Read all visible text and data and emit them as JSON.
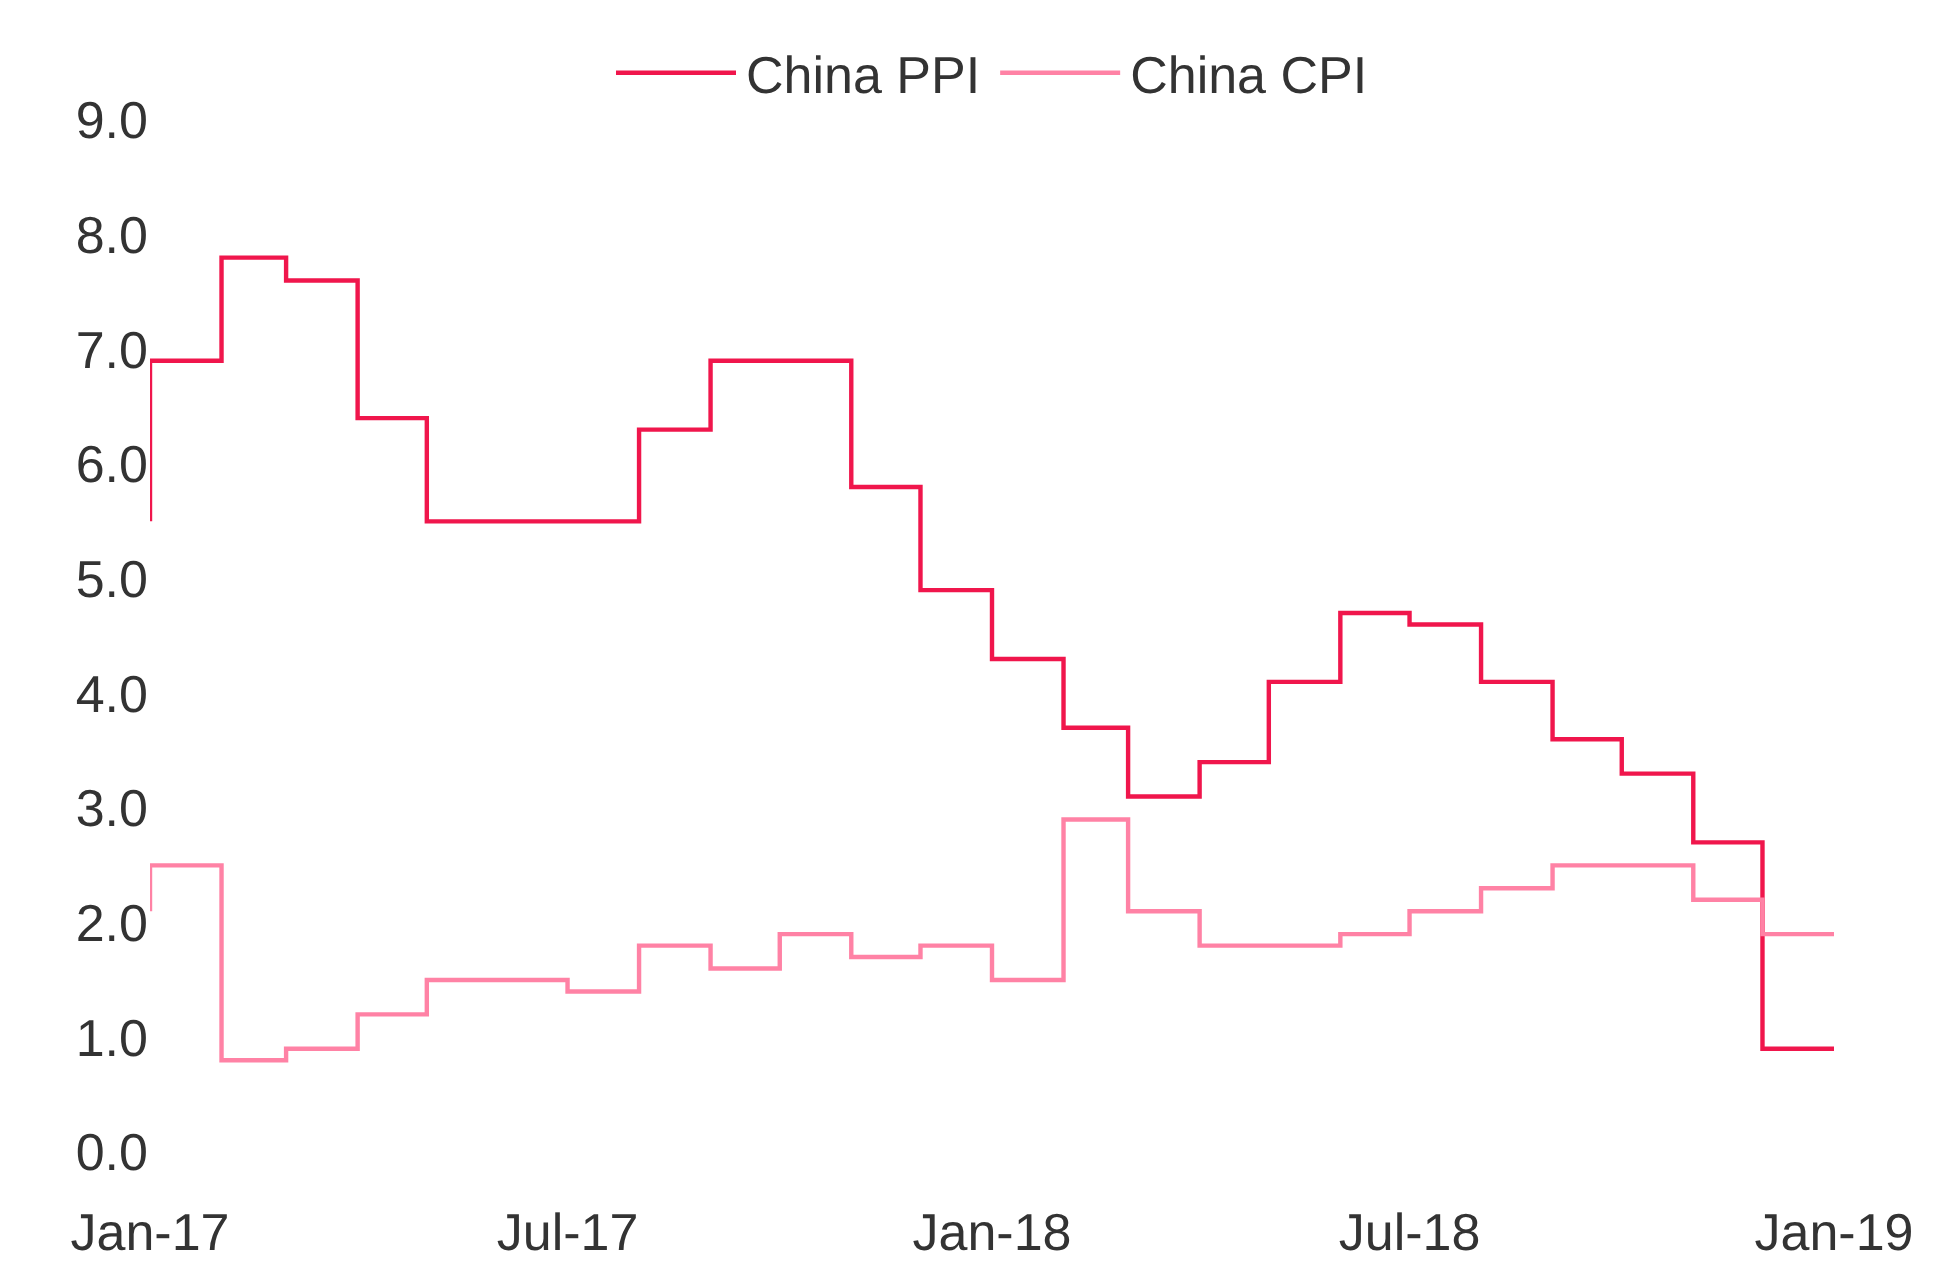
{
  "chart_data": {
    "type": "step",
    "x": [
      "2017-01",
      "2017-02",
      "2017-03",
      "2017-04",
      "2017-05",
      "2017-06",
      "2017-07",
      "2017-08",
      "2017-09",
      "2017-10",
      "2017-11",
      "2017-12",
      "2018-01",
      "2018-02",
      "2018-03",
      "2018-04",
      "2018-05",
      "2018-06",
      "2018-07",
      "2018-08",
      "2018-09",
      "2018-10",
      "2018-11",
      "2018-12",
      "2019-01"
    ],
    "series": [
      {
        "name": "China PPI",
        "color": "#f0164c",
        "values": [
          5.5,
          6.9,
          7.8,
          7.6,
          6.4,
          5.5,
          5.5,
          5.5,
          6.3,
          6.9,
          6.9,
          5.8,
          4.9,
          4.3,
          3.7,
          3.1,
          3.4,
          4.1,
          4.7,
          4.6,
          4.1,
          3.6,
          3.3,
          2.7,
          0.9
        ]
      },
      {
        "name": "China CPI",
        "color": "#ff82a5",
        "values": [
          2.1,
          2.5,
          0.8,
          0.9,
          1.2,
          1.5,
          1.5,
          1.4,
          1.8,
          1.6,
          1.9,
          1.7,
          1.8,
          1.5,
          2.9,
          2.1,
          1.8,
          1.8,
          1.9,
          2.1,
          2.3,
          2.5,
          2.5,
          2.2,
          1.9
        ]
      }
    ],
    "xlim": [
      "2017-01",
      "2019-01"
    ],
    "xticks": [
      {
        "value": "2017-01",
        "label": "Jan-17"
      },
      {
        "value": "2017-07",
        "label": "Jul-17"
      },
      {
        "value": "2018-01",
        "label": "Jan-18"
      },
      {
        "value": "2018-07",
        "label": "Jul-18"
      },
      {
        "value": "2019-01",
        "label": "Jan-19"
      }
    ],
    "ylim": [
      0,
      9
    ],
    "yticks": [
      {
        "value": 0,
        "label": "0.0"
      },
      {
        "value": 1,
        "label": "1.0"
      },
      {
        "value": 2,
        "label": "2.0"
      },
      {
        "value": 3,
        "label": "3.0"
      },
      {
        "value": 4,
        "label": "4.0"
      },
      {
        "value": 5,
        "label": "5.0"
      },
      {
        "value": 6,
        "label": "6.0"
      },
      {
        "value": 7,
        "label": "7.0"
      },
      {
        "value": 8,
        "label": "8.0"
      },
      {
        "value": 9,
        "label": "9.0"
      }
    ],
    "legend": "top",
    "line_style": "solid",
    "marker": "none"
  }
}
